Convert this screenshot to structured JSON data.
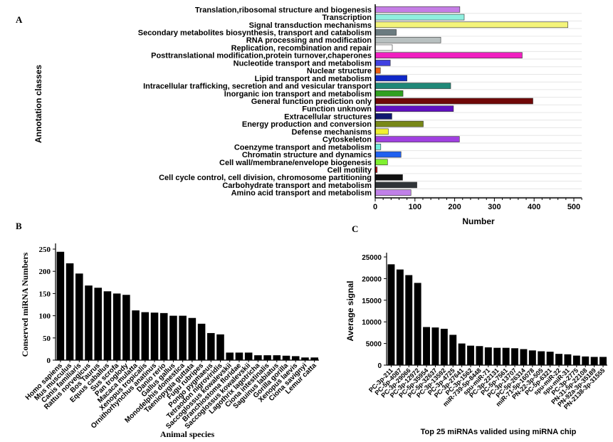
{
  "panel_letters": [
    "A",
    "B",
    "C"
  ],
  "chart_data": [
    {
      "type": "bar",
      "orientation": "horizontal",
      "panel": "A",
      "xlabel": "Number",
      "ylabel": "Annotation classes",
      "xlim": [
        0,
        520
      ],
      "xticks": [
        0,
        100,
        200,
        300,
        400,
        500
      ],
      "grid": true,
      "categories": [
        "Translation,ribosomal structure and biogenesis",
        "Transcription",
        "Signal transduction mechanisms",
        "Secondary metabolites biosynthesis, transport and catabolism",
        "RNA processing and modification",
        "Replication, recombination and repair",
        "Posttranslational modification,protein turnover,chaperones",
        "Nucleotide transport and metabolism",
        "Nuclear structure",
        "Lipid transport and metabolism",
        "Intracellular trafficking, secretion and  and vesicular transport",
        "Inorganic ion transport and metabolism",
        "General function prediction only",
        "Function unknown",
        "Extracellular structures",
        "Energy production and conversion",
        "Defense mechanisms",
        "Cytoskeleton",
        "Coenzyme transport and metabolism",
        "Chromatin structure and dynamics",
        "Cell wall/membrane/envelope biogenesis",
        "Cell motility",
        "Cell cycle control, cell division, chromosome partitioning",
        "Carbohydrate transport and metabolism",
        "Amino acid transport and metabolism"
      ],
      "values": [
        213,
        224,
        485,
        53,
        165,
        43,
        370,
        38,
        13,
        80,
        190,
        70,
        397,
        197,
        42,
        121,
        33,
        212,
        14,
        65,
        31,
        5,
        69,
        105,
        90
      ],
      "colors": [
        "#c57ee6",
        "#8ff0e0",
        "#f4f47a",
        "#6b7b80",
        "#b8c0c0",
        "#ffffff",
        "#f020c0",
        "#4040e0",
        "#f06010",
        "#1028c8",
        "#208878",
        "#30a020",
        "#700808",
        "#6010c0",
        "#101870",
        "#788818",
        "#f0f030",
        "#a040e0",
        "#70f0e0",
        "#2060f0",
        "#80f030",
        "#c01010",
        "#101010",
        "#303438",
        "#c080e8"
      ]
    },
    {
      "type": "bar",
      "panel": "B",
      "xlabel": "Animal species",
      "ylabel": "Conserved miRNA Numbers",
      "ylim": [
        0,
        260
      ],
      "yticks": [
        0,
        50,
        100,
        150,
        200,
        250
      ],
      "categories": [
        "Homo sapiens",
        "Mus musculus",
        "Canis familiaris",
        "Rattus norvegicus",
        "Bos Taurus",
        "Equus caballus",
        "Sus scrofa",
        "Pan troglody",
        "Macaca mulatta",
        "Xenopus tropicalis",
        "Ornithorhynchus anatinus",
        "Danio rerio",
        "Gallus gallus",
        "Monodelphis domestica",
        "Taeniopygia guttata",
        "Fugu rubripes",
        "Pongo pygmaeus",
        "Tetraodon nigroviridis",
        "Saccoglossus kowalevskii",
        "Branchiostoma floridae",
        "Saccoglossus kowalevskii",
        "Lagothrix lagotricha",
        "Ciona intestinalis",
        "Saguinus labiatus",
        "Gorilla gorilla",
        "Xenopus laevis",
        "Ciona savignyi",
        "Lemur catta"
      ],
      "values": [
        244,
        218,
        195,
        168,
        163,
        155,
        150,
        147,
        112,
        108,
        107,
        106,
        100,
        100,
        95,
        82,
        61,
        58,
        17,
        17,
        17,
        11,
        11,
        11,
        10,
        9,
        6,
        6
      ]
    },
    {
      "type": "bar",
      "panel": "C",
      "xlabel": "Top 25 miRNAs valided using miRNA chip",
      "ylabel": "Average signal",
      "ylim": [
        0,
        25500
      ],
      "yticks": [
        0,
        5000,
        10000,
        15000,
        20000,
        25000
      ],
      "categories": [
        "PC-3p-211",
        "PC-5p-4087",
        "PC-3p-29066",
        "PC-3p-12972",
        "PC-5p-35954",
        "PC-5p-32637",
        "PC-3p-13592",
        "PC-3p-4725",
        "PC-3p-27641",
        "PC-3p-1562",
        "miR-739-5p-8448",
        "spu-miR-71",
        "PC-3p-22131",
        "PC-5p-7561",
        "PC-3p-13707",
        "PC-5p-26314",
        "miR-71-5p-16078",
        "PN-22-3p-505",
        "PC-5p-6321",
        "spu-miR-22",
        "spu-miR-31",
        "PC-3p-2775",
        "PN-31-5p-22108",
        "PN-92a-3p-35189",
        "PN-2138-3p-31555"
      ],
      "values": [
        23300,
        22100,
        20800,
        19000,
        8800,
        8700,
        8400,
        7000,
        5000,
        4500,
        4400,
        4100,
        4000,
        4000,
        3900,
        3700,
        3400,
        3200,
        3100,
        2600,
        2500,
        2200,
        2000,
        1900,
        1900
      ]
    }
  ]
}
